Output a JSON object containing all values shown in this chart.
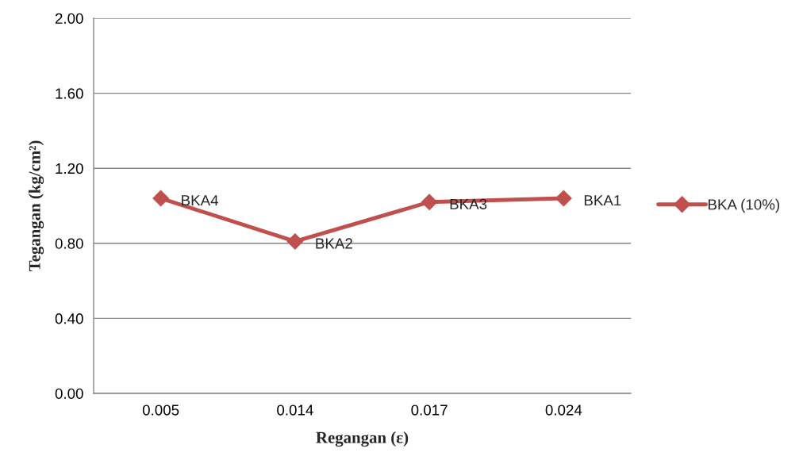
{
  "chart_data": {
    "type": "line",
    "xlabel": "Regangan (ε)",
    "ylabel": "Tegangan (kg/cm²)",
    "categories": [
      "0.005",
      "0.014",
      "0.017",
      "0.024"
    ],
    "series": [
      {
        "name": "BKA (10%)",
        "color": "#c0504d",
        "values": [
          1.04,
          0.81,
          1.02,
          1.04
        ]
      }
    ],
    "ylim": [
      0,
      2.0
    ],
    "yticks": [
      {
        "value": 0,
        "label": "0.00"
      },
      {
        "value": 0.4,
        "label": "0.40"
      },
      {
        "value": 0.8,
        "label": "0.80"
      },
      {
        "value": 1.2,
        "label": "1.20"
      },
      {
        "value": 1.6,
        "label": "1.60"
      },
      {
        "value": 2.0,
        "label": "2.00"
      }
    ],
    "grid": "y",
    "legend": "right",
    "marker": "diamond",
    "line_style": "solid",
    "annotations": [
      {
        "text": "BKA4",
        "x": "0.005",
        "y": 1.04
      },
      {
        "text": "BKA2",
        "x": "0.014",
        "y": 0.81
      },
      {
        "text": "BKA3",
        "x": "0.017",
        "y": 1.02
      },
      {
        "text": "BKA1",
        "x": "0.024",
        "y": 1.04
      }
    ]
  }
}
